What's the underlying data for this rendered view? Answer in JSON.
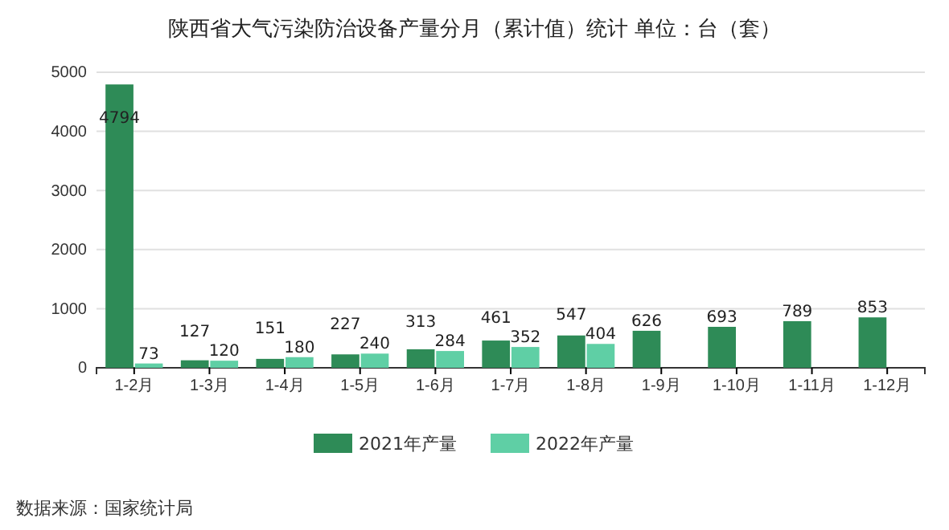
{
  "chart_data": {
    "type": "bar",
    "title": "陕西省大气污染防治设备产量分月（累计值）统计  单位：台（套）",
    "categories": [
      "1-2月",
      "1-3月",
      "1-4月",
      "1-5月",
      "1-6月",
      "1-7月",
      "1-8月",
      "1-9月",
      "1-10月",
      "1-11月",
      "1-12月"
    ],
    "series": [
      {
        "name": "2021年产量",
        "color": "#2e8b57",
        "values": [
          4794,
          127,
          151,
          227,
          313,
          461,
          547,
          626,
          693,
          789,
          853
        ]
      },
      {
        "name": "2022年产量",
        "color": "#5fcfa5",
        "values": [
          73,
          120,
          180,
          240,
          284,
          352,
          404,
          null,
          null,
          null,
          null
        ]
      }
    ],
    "ylim": [
      0,
      5000
    ],
    "yticks": [
      0,
      1000,
      2000,
      3000,
      4000,
      5000
    ],
    "grid": "y",
    "legend": "bottom",
    "data_labels": true,
    "annotations": [
      "数据来源：国家统计局"
    ]
  }
}
